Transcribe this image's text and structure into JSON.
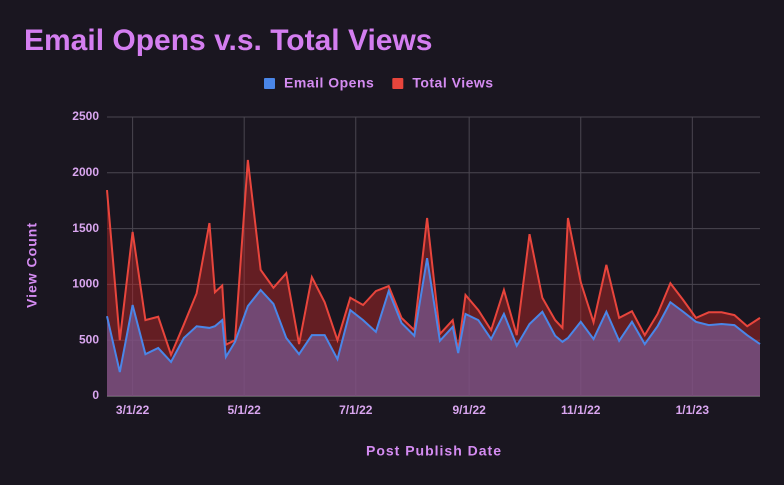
{
  "chart_data": {
    "type": "area",
    "title": "Email Opens v.s. Total Views",
    "x_label": "Post Publish Date",
    "y_label": "View Count",
    "legend": "top",
    "grid": true,
    "x": [
      "2/15/22",
      "2/22/22",
      "3/1/22",
      "3/8/22",
      "3/15/22",
      "3/22/22",
      "3/29/22",
      "4/5/22",
      "4/12/22",
      "4/15/22",
      "4/19/22",
      "4/21/22",
      "4/26/22",
      "5/3/22",
      "5/10/22",
      "5/17/22",
      "5/24/22",
      "5/31/22",
      "6/7/22",
      "6/14/22",
      "6/21/22",
      "6/28/22",
      "7/5/22",
      "7/12/22",
      "7/19/22",
      "7/26/22",
      "8/2/22",
      "8/9/22",
      "8/16/22",
      "8/23/22",
      "8/26/22",
      "8/30/22",
      "9/6/22",
      "9/13/22",
      "9/20/22",
      "9/27/22",
      "10/4/22",
      "10/11/22",
      "10/18/22",
      "10/22/22",
      "10/25/22",
      "11/1/22",
      "11/8/22",
      "11/15/22",
      "11/22/22",
      "11/29/22",
      "12/6/22",
      "12/13/22",
      "12/20/22",
      "12/27/22",
      "1/3/23",
      "1/10/23",
      "1/17/23",
      "1/24/23",
      "1/31/23",
      "2/7/23"
    ],
    "xlim": [
      "2/15/22",
      "2/7/23"
    ],
    "xticks": [
      "3/1/22",
      "5/1/22",
      "7/1/22",
      "9/1/22",
      "11/1/22",
      "1/1/23"
    ],
    "ylim": [
      0,
      2500
    ],
    "yticks": [
      0,
      500,
      1000,
      1500,
      2000,
      2500
    ],
    "series": [
      {
        "name": "Total Views",
        "color": "#e8453c",
        "values": [
          1845,
          500,
          1470,
          680,
          710,
          370,
          640,
          920,
          1550,
          930,
          990,
          460,
          500,
          2115,
          1130,
          970,
          1100,
          465,
          1065,
          840,
          500,
          880,
          815,
          940,
          985,
          700,
          590,
          1595,
          555,
          680,
          410,
          905,
          770,
          590,
          950,
          545,
          1450,
          880,
          680,
          610,
          1595,
          1020,
          660,
          1175,
          700,
          760,
          545,
          735,
          1010,
          860,
          700,
          750,
          750,
          725,
          625,
          700
        ]
      },
      {
        "name": "Email Opens",
        "color": "#4a86e8",
        "values": [
          715,
          215,
          815,
          375,
          430,
          305,
          520,
          625,
          610,
          625,
          680,
          350,
          485,
          805,
          950,
          825,
          520,
          375,
          545,
          545,
          330,
          770,
          680,
          575,
          940,
          655,
          540,
          1235,
          495,
          620,
          385,
          735,
          680,
          510,
          735,
          450,
          645,
          755,
          540,
          485,
          520,
          665,
          510,
          755,
          495,
          665,
          465,
          625,
          840,
          755,
          665,
          635,
          645,
          635,
          545,
          465
        ]
      }
    ]
  }
}
